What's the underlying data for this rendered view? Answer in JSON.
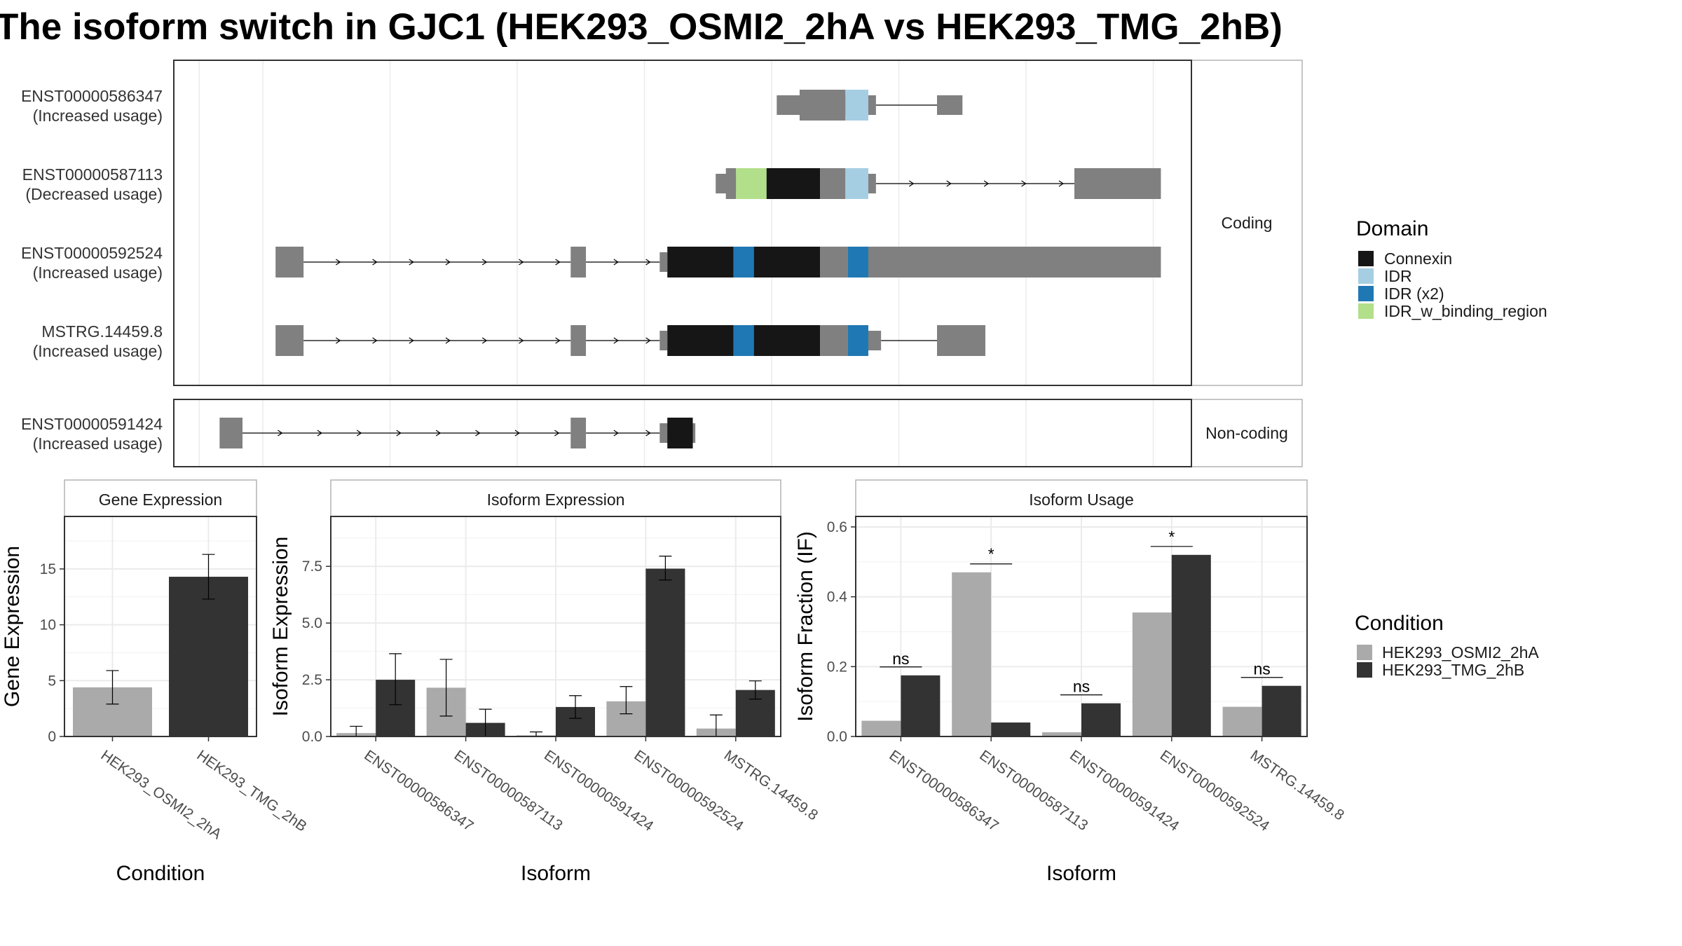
{
  "title": "The isoform switch in GJC1 (HEK293_OSMI2_2hA vs HEK293_TMG_2hB)",
  "colors": {
    "exon": "#808080",
    "Connexin": "#161616",
    "IDR": "#a6cee3",
    "IDR (x2)": "#1f78b4",
    "IDR_w_binding_region": "#b2df8a",
    "cond1": "#aaaaaa",
    "cond2": "#333333",
    "grid": "#ebebeb",
    "panel_border": "#333333",
    "strip_fill": "#ffffff",
    "strip_border": "#b3b3b3"
  },
  "structure": {
    "facets": [
      "Coding",
      "Non-coding"
    ],
    "transcripts": [
      {
        "id": "ENST00000586347",
        "usage": "(Increased usage)",
        "facet": "Coding",
        "segments": [
          {
            "s": 0.5925,
            "e": 0.6725,
            "h": "utr",
            "c": "exon"
          },
          {
            "s": 0.615,
            "e": 0.66,
            "h": "cds",
            "c": "exon"
          },
          {
            "s": 0.66,
            "e": 0.6825,
            "h": "cds",
            "c": "IDR"
          },
          {
            "s": 0.6825,
            "e": 0.69,
            "h": "utr",
            "c": "exon"
          },
          {
            "s": 0.75,
            "e": 0.775,
            "h": "utr",
            "c": "exon"
          }
        ],
        "introns": [
          {
            "s": 0.69,
            "e": 0.75,
            "arrows": false
          }
        ]
      },
      {
        "id": "ENST00000587113",
        "usage": "(Decreased usage)",
        "facet": "Coding",
        "segments": [
          {
            "s": 0.5325,
            "e": 0.5525,
            "h": "utr",
            "c": "exon"
          },
          {
            "s": 0.5425,
            "e": 0.5525,
            "h": "cds",
            "c": "exon"
          },
          {
            "s": 0.5525,
            "e": 0.5825,
            "h": "cds",
            "c": "IDR_w_binding_region"
          },
          {
            "s": 0.5825,
            "e": 0.635,
            "h": "cds",
            "c": "Connexin"
          },
          {
            "s": 0.635,
            "e": 0.66,
            "h": "cds",
            "c": "exon"
          },
          {
            "s": 0.66,
            "e": 0.6825,
            "h": "cds",
            "c": "IDR"
          },
          {
            "s": 0.6825,
            "e": 0.69,
            "h": "utr",
            "c": "exon"
          },
          {
            "s": 0.885,
            "e": 0.97,
            "h": "cds",
            "c": "exon"
          }
        ],
        "introns": [
          {
            "s": 0.69,
            "e": 0.885,
            "arrows": true
          }
        ]
      },
      {
        "id": "ENST00000592524",
        "usage": "(Increased usage)",
        "facet": "Coding",
        "segments": [
          {
            "s": 0.1,
            "e": 0.1275,
            "h": "cds",
            "c": "exon"
          },
          {
            "s": 0.39,
            "e": 0.405,
            "h": "cds",
            "c": "exon"
          },
          {
            "s": 0.4775,
            "e": 0.485,
            "h": "utr",
            "c": "exon"
          },
          {
            "s": 0.485,
            "e": 0.55,
            "h": "cds",
            "c": "Connexin"
          },
          {
            "s": 0.55,
            "e": 0.57,
            "h": "cds",
            "c": "IDR (x2)"
          },
          {
            "s": 0.57,
            "e": 0.635,
            "h": "cds",
            "c": "Connexin"
          },
          {
            "s": 0.635,
            "e": 0.6625,
            "h": "cds",
            "c": "exon"
          },
          {
            "s": 0.6625,
            "e": 0.6825,
            "h": "cds",
            "c": "IDR (x2)"
          },
          {
            "s": 0.6825,
            "e": 0.97,
            "h": "cds",
            "c": "exon"
          }
        ],
        "introns": [
          {
            "s": 0.1275,
            "e": 0.39,
            "arrows": true
          },
          {
            "s": 0.405,
            "e": 0.4775,
            "arrows": true
          }
        ]
      },
      {
        "id": "MSTRG.14459.8",
        "usage": "(Increased usage)",
        "facet": "Coding",
        "segments": [
          {
            "s": 0.1,
            "e": 0.1275,
            "h": "cds",
            "c": "exon"
          },
          {
            "s": 0.39,
            "e": 0.405,
            "h": "cds",
            "c": "exon"
          },
          {
            "s": 0.4775,
            "e": 0.485,
            "h": "utr",
            "c": "exon"
          },
          {
            "s": 0.485,
            "e": 0.55,
            "h": "cds",
            "c": "Connexin"
          },
          {
            "s": 0.55,
            "e": 0.57,
            "h": "cds",
            "c": "IDR (x2)"
          },
          {
            "s": 0.57,
            "e": 0.635,
            "h": "cds",
            "c": "Connexin"
          },
          {
            "s": 0.635,
            "e": 0.6625,
            "h": "cds",
            "c": "exon"
          },
          {
            "s": 0.6625,
            "e": 0.6825,
            "h": "cds",
            "c": "IDR (x2)"
          },
          {
            "s": 0.6825,
            "e": 0.695,
            "h": "utr",
            "c": "exon"
          },
          {
            "s": 0.75,
            "e": 0.7975,
            "h": "cds",
            "c": "exon"
          }
        ],
        "introns": [
          {
            "s": 0.1275,
            "e": 0.39,
            "arrows": true
          },
          {
            "s": 0.405,
            "e": 0.4775,
            "arrows": true
          },
          {
            "s": 0.695,
            "e": 0.75,
            "arrows": false
          }
        ]
      },
      {
        "id": "ENST00000591424",
        "usage": "(Increased usage)",
        "facet": "Non-coding",
        "segments": [
          {
            "s": 0.045,
            "e": 0.0675,
            "h": "cds",
            "c": "exon"
          },
          {
            "s": 0.39,
            "e": 0.405,
            "h": "cds",
            "c": "exon"
          },
          {
            "s": 0.4775,
            "e": 0.5125,
            "h": "utr",
            "c": "exon"
          },
          {
            "s": 0.485,
            "e": 0.51,
            "h": "cds",
            "c": "Connexin"
          }
        ],
        "introns": [
          {
            "s": 0.0675,
            "e": 0.39,
            "arrows": true
          },
          {
            "s": 0.405,
            "e": 0.4775,
            "arrows": true
          }
        ]
      }
    ]
  },
  "legend_domain": {
    "title": "Domain",
    "items": [
      "Connexin",
      "IDR",
      "IDR (x2)",
      "IDR_w_binding_region"
    ]
  },
  "legend_condition": {
    "title": "Condition",
    "items": [
      "HEK293_OSMI2_2hA",
      "HEK293_TMG_2hB"
    ]
  },
  "chart_data": [
    {
      "type": "bar",
      "title": "Gene Expression",
      "xlabel": "Condition",
      "ylabel": "Gene Expression",
      "ylim": [
        0,
        19.7
      ],
      "yticks": [
        0,
        5,
        10,
        15
      ],
      "categories": [
        "HEK293_OSMI2_2hA",
        "HEK293_TMG_2hB"
      ],
      "values": [
        4.4,
        14.3
      ],
      "error_low": [
        2.9,
        12.3
      ],
      "error_high": [
        5.9,
        16.3
      ]
    },
    {
      "type": "bar",
      "title": "Isoform Expression",
      "xlabel": "Isoform",
      "ylabel": "Isoform Expression",
      "ylim": [
        0,
        9.7
      ],
      "yticks": [
        0.0,
        2.5,
        5.0,
        7.5
      ],
      "categories": [
        "ENST00000586347",
        "ENST00000587113",
        "ENST00000591424",
        "ENST00000592524",
        "MSTRG.14459.8"
      ],
      "series": [
        {
          "name": "HEK293_OSMI2_2hA",
          "values": [
            0.15,
            2.15,
            0.05,
            1.55,
            0.35
          ],
          "error_low": [
            0.0,
            0.9,
            0.0,
            1.0,
            0.0
          ],
          "error_high": [
            0.45,
            3.4,
            0.2,
            2.2,
            0.95
          ]
        },
        {
          "name": "HEK293_TMG_2hB",
          "values": [
            2.5,
            0.6,
            1.3,
            7.4,
            2.05
          ],
          "error_low": [
            1.4,
            0.0,
            0.8,
            6.9,
            1.65
          ],
          "error_high": [
            3.65,
            1.2,
            1.8,
            7.95,
            2.45
          ]
        }
      ]
    },
    {
      "type": "bar",
      "title": "Isoform Usage",
      "xlabel": "Isoform",
      "ylabel": "Isoform Fraction (IF)",
      "ylim": [
        0,
        0.63
      ],
      "yticks": [
        0.0,
        0.2,
        0.4,
        0.6
      ],
      "categories": [
        "ENST00000586347",
        "ENST00000587113",
        "ENST00000591424",
        "ENST00000592524",
        "MSTRG.14459.8"
      ],
      "series": [
        {
          "name": "HEK293_OSMI2_2hA",
          "values": [
            0.045,
            0.47,
            0.012,
            0.355,
            0.085
          ]
        },
        {
          "name": "HEK293_TMG_2hB",
          "values": [
            0.175,
            0.04,
            0.095,
            0.52,
            0.145
          ]
        }
      ],
      "significance": [
        "ns",
        "*",
        "ns",
        "*",
        "ns"
      ]
    }
  ]
}
